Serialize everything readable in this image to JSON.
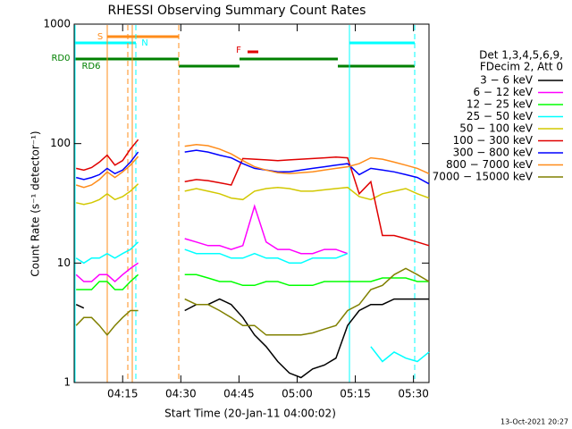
{
  "chart_data": {
    "type": "line",
    "title": "RHESSI Observing Summary Count Rates",
    "xlabel": "Start Time (20-Jan-11 04:00:02)",
    "ylabel": "Count Rate (s⁻¹ detector⁻¹)",
    "timestamp": "13-Oct-2021 20:27",
    "legend_title": [
      "Det 1,3,4,5,6,9,",
      "FDecim 2, Att 0"
    ],
    "annotations": [
      "S",
      "N",
      "F",
      "RD0",
      "RD6"
    ],
    "log_y": true,
    "xlim": [
      2.5,
      94
    ],
    "xticks": [
      {
        "value": 15,
        "label": "04:15"
      },
      {
        "value": 30,
        "label": "04:30"
      },
      {
        "value": 45,
        "label": "04:45"
      },
      {
        "value": 60,
        "label": "05:00"
      },
      {
        "value": 75,
        "label": "05:15"
      },
      {
        "value": 90,
        "label": "05:30"
      }
    ],
    "ylim": [
      1,
      1000
    ],
    "yticks": [
      1,
      10,
      100,
      1000
    ],
    "x": [
      3,
      5,
      7,
      9,
      11,
      13,
      15,
      17,
      19,
      25,
      31,
      34,
      37,
      40,
      43,
      46,
      49,
      52,
      55,
      58,
      61,
      64,
      67,
      70,
      73,
      76,
      79,
      82,
      85,
      88,
      91,
      94
    ],
    "series": [
      {
        "name": "3 − 6 keV",
        "color": "#000000",
        "values": [
          4.5,
          4.2,
          null,
          null,
          null,
          null,
          null,
          null,
          null,
          null,
          4,
          4.5,
          4.5,
          5,
          4.5,
          3.5,
          2.5,
          2,
          1.5,
          1.2,
          1.1,
          1.3,
          1.4,
          1.6,
          3,
          4,
          4.5,
          4.5,
          5,
          5,
          5,
          5
        ]
      },
      {
        "name": "6 − 12 keV",
        "color": "#ff00ff",
        "values": [
          8,
          7,
          7,
          8,
          8,
          7,
          8,
          9,
          10,
          null,
          16,
          15,
          14,
          14,
          13,
          14,
          30,
          15,
          13,
          13,
          12,
          12,
          13,
          13,
          12,
          null,
          null,
          null,
          null,
          null,
          null,
          null
        ]
      },
      {
        "name": "12 − 25 keV",
        "color": "#00ff00",
        "values": [
          6,
          6,
          6,
          7,
          7,
          6,
          6,
          7,
          8,
          null,
          8,
          8,
          7.5,
          7,
          7,
          6.5,
          6.5,
          7,
          7,
          6.5,
          6.5,
          6.5,
          7,
          7,
          7,
          7,
          7,
          7.5,
          7.5,
          7.5,
          7,
          7
        ]
      },
      {
        "name": "25 − 50 keV",
        "color": "#00ffff",
        "values": [
          11,
          10,
          11,
          11,
          12,
          11,
          12,
          13,
          15,
          null,
          13,
          12,
          12,
          12,
          11,
          11,
          12,
          11,
          11,
          10,
          10,
          11,
          11,
          11,
          12,
          null,
          2,
          1.5,
          1.8,
          1.6,
          1.5,
          1.8
        ]
      },
      {
        "name": "50 − 100 keV",
        "color": "#d2c800",
        "values": [
          32,
          31,
          32,
          34,
          38,
          34,
          36,
          40,
          46,
          null,
          40,
          42,
          40,
          38,
          35,
          34,
          40,
          42,
          43,
          42,
          40,
          40,
          41,
          42,
          43,
          36,
          34,
          38,
          40,
          42,
          38,
          35
        ]
      },
      {
        "name": "100 − 300 keV",
        "color": "#e00000",
        "values": [
          62,
          60,
          63,
          70,
          80,
          66,
          72,
          90,
          108,
          null,
          48,
          50,
          49,
          47,
          45,
          75,
          74,
          73,
          72,
          73,
          74,
          75,
          76,
          77,
          76,
          38,
          48,
          17,
          17,
          16,
          15,
          14
        ]
      },
      {
        "name": "300 − 800 keV",
        "color": "#0000ff",
        "values": [
          52,
          50,
          52,
          55,
          62,
          56,
          60,
          70,
          85,
          null,
          85,
          88,
          85,
          80,
          76,
          68,
          62,
          60,
          58,
          58,
          60,
          62,
          64,
          66,
          68,
          55,
          62,
          60,
          58,
          55,
          52,
          46
        ]
      },
      {
        "name": "800 − 7000 keV",
        "color": "#ff8c1a",
        "values": [
          45,
          43,
          45,
          50,
          58,
          52,
          58,
          66,
          78,
          null,
          95,
          98,
          96,
          90,
          82,
          72,
          64,
          60,
          57,
          56,
          57,
          58,
          60,
          62,
          64,
          68,
          76,
          74,
          70,
          66,
          62,
          56
        ]
      },
      {
        "name": "7000 − 15000 keV",
        "color": "#808000",
        "values": [
          3,
          3.5,
          3.5,
          3,
          2.5,
          3,
          3.5,
          4,
          4,
          null,
          5,
          4.5,
          4.5,
          4,
          3.5,
          3,
          3,
          2.5,
          2.5,
          2.5,
          2.5,
          2.6,
          2.8,
          3,
          4,
          4.5,
          6,
          6.5,
          8,
          9,
          8,
          7
        ]
      }
    ]
  }
}
